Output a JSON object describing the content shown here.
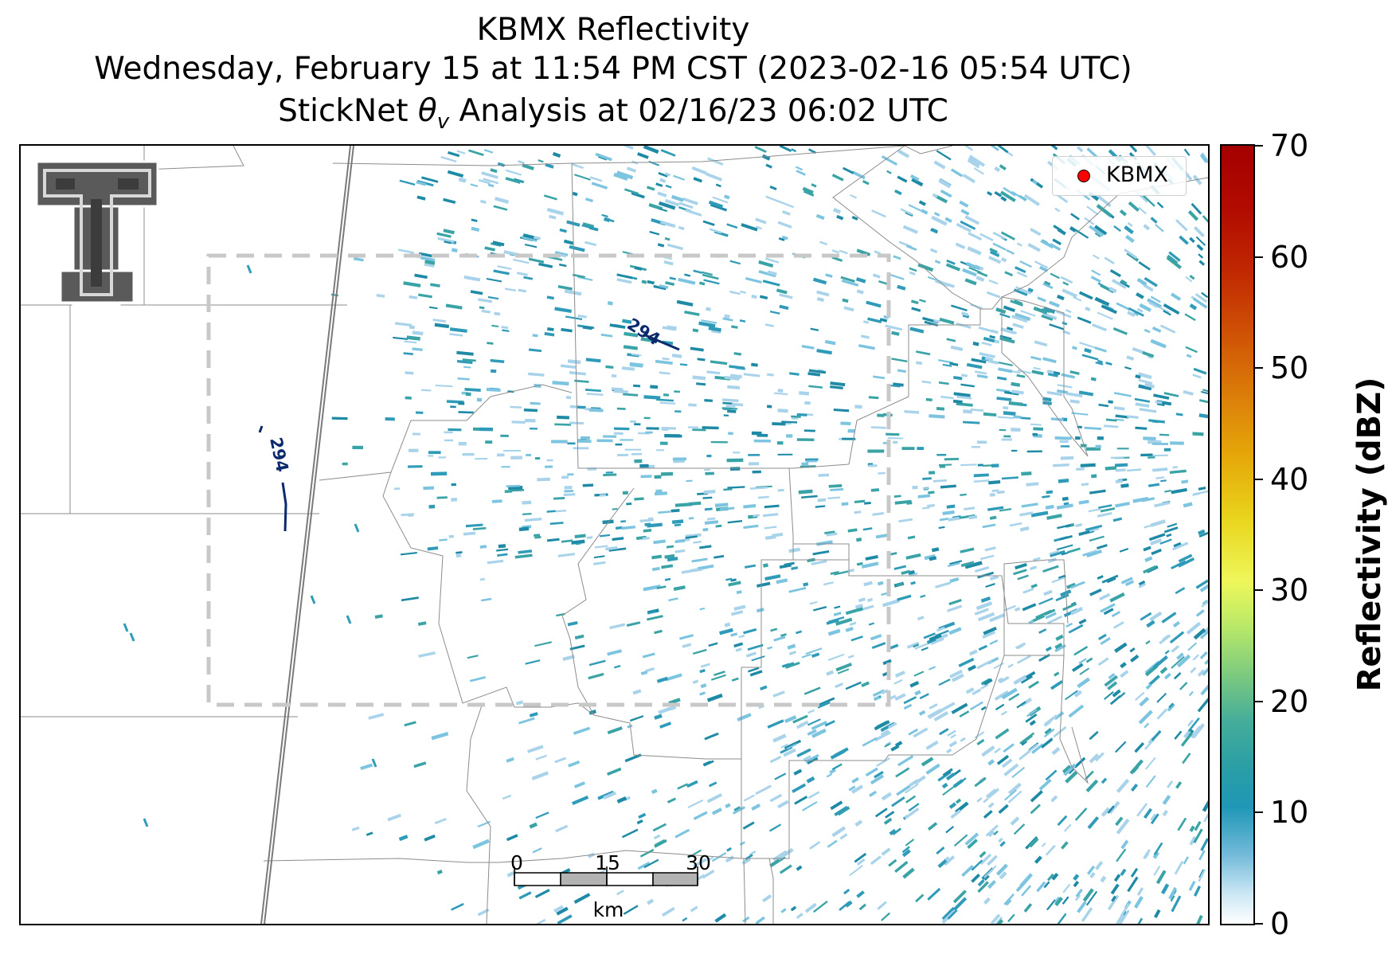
{
  "title": {
    "line1": "KBMX Reflectivity",
    "line2": "Wednesday, February 15 at 11:54 PM CST (2023-02-16 05:54 UTC)",
    "line3_prefix": "StickNet ",
    "line3_symbol": "θ",
    "line3_subscript": "v",
    "line3_suffix": " Analysis at 02/16/23 06:02 UTC"
  },
  "legend": {
    "marker_label": "KBMX",
    "marker_color": "#ff0000"
  },
  "contours": [
    {
      "label": "294",
      "color": "#0b2a6e"
    },
    {
      "label": "294",
      "color": "#0b2a6e"
    }
  ],
  "scalebar": {
    "ticks": [
      "0",
      "15",
      "30"
    ],
    "unit": "km"
  },
  "colorbar": {
    "label": "Reflectivity (dBZ)",
    "ticks": [
      "0",
      "10",
      "20",
      "30",
      "40",
      "50",
      "60",
      "70"
    ],
    "min": 0,
    "max": 70
  },
  "colors": {
    "echo_light": "#a9d3ea",
    "echo_mid": "#2f9bb8",
    "echo_dark": "#1e8aa5",
    "county_lines": "#8c8c8c",
    "analysis_box": "#c8c8c8"
  },
  "icons": {
    "logo": "double-t-logo-icon",
    "radar_site": "red-dot-icon"
  }
}
